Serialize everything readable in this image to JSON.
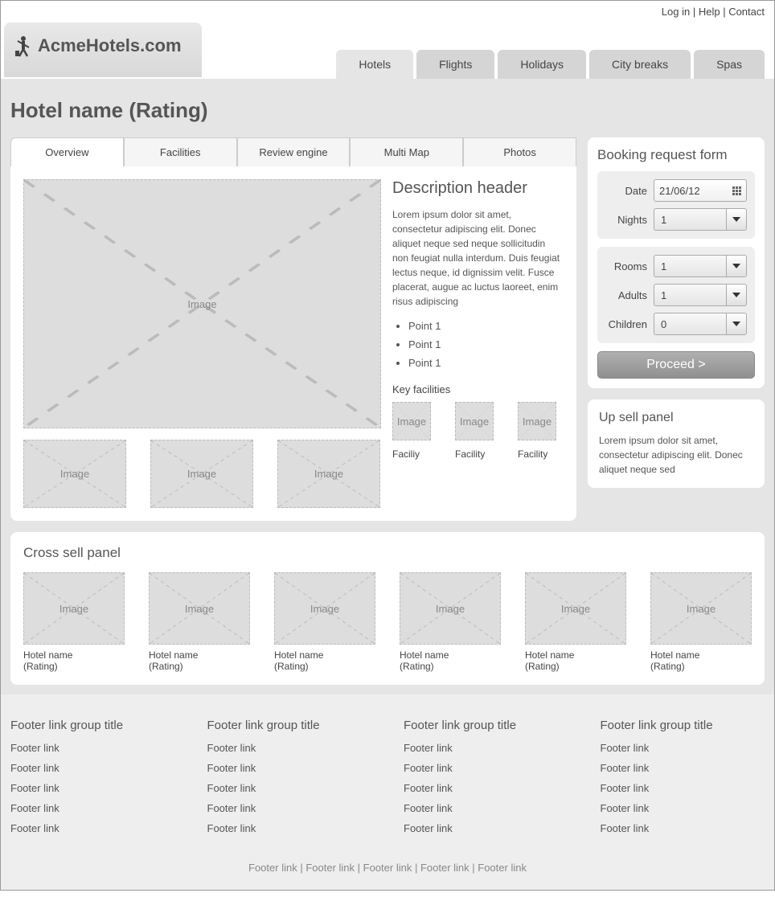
{
  "top_links": {
    "login": "Log in",
    "help": "Help",
    "contact": "Contact"
  },
  "logo": {
    "text": "AcmeHotels.com"
  },
  "main_nav": [
    {
      "label": "Hotels",
      "active": true
    },
    {
      "label": "Flights"
    },
    {
      "label": "Holidays"
    },
    {
      "label": "City breaks"
    },
    {
      "label": "Spas"
    }
  ],
  "page_title": "Hotel name (Rating)",
  "detail_tabs": [
    {
      "label": "Overview",
      "active": true
    },
    {
      "label": "Facilities"
    },
    {
      "label": "Review engine"
    },
    {
      "label": "Multi Map"
    },
    {
      "label": "Photos"
    }
  ],
  "placeholder_label": "Image",
  "description": {
    "header": "Description header",
    "text": "Lorem ipsum dolor sit amet, consectetur adipiscing elit. Donec aliquet neque sed neque sollicitudin non feugiat nulla interdum. Duis feugiat lectus neque, id dignissim velit. Fusce placerat, augue ac luctus laoreet, enim risus adipiscing",
    "points": [
      "Point 1",
      "Point 1",
      "Point 1"
    ]
  },
  "facilities": {
    "title": "Key facilities",
    "items": [
      {
        "label": "Faciliy"
      },
      {
        "label": "Facility"
      },
      {
        "label": "Facility"
      }
    ]
  },
  "booking": {
    "title": "Booking request form",
    "fields": {
      "date": {
        "label": "Date",
        "value": "21/06/12"
      },
      "nights": {
        "label": "Nights",
        "value": "1"
      },
      "rooms": {
        "label": "Rooms",
        "value": "1"
      },
      "adults": {
        "label": "Adults",
        "value": "1"
      },
      "children": {
        "label": "Children",
        "value": "0"
      }
    },
    "proceed": "Proceed >"
  },
  "upsell": {
    "title": "Up sell panel",
    "text": "Lorem ipsum dolor sit amet, consectetur adipiscing elit. Donec aliquet neque sed"
  },
  "cross": {
    "title": "Cross sell panel",
    "items": [
      {
        "name": "Hotel name",
        "rating": "(Rating)"
      },
      {
        "name": "Hotel name",
        "rating": "(Rating)"
      },
      {
        "name": "Hotel name",
        "rating": "(Rating)"
      },
      {
        "name": "Hotel name",
        "rating": "(Rating)"
      },
      {
        "name": "Hotel name",
        "rating": "(Rating)"
      },
      {
        "name": "Hotel name",
        "rating": "(Rating)"
      }
    ]
  },
  "footer": {
    "columns": [
      {
        "title": "Footer link group title",
        "links": [
          "Footer link",
          "Footer link",
          "Footer link",
          "Footer link",
          "Footer link"
        ]
      },
      {
        "title": "Footer link group title",
        "links": [
          "Footer link",
          "Footer link",
          "Footer link",
          "Footer link",
          "Footer link"
        ]
      },
      {
        "title": "Footer link group title",
        "links": [
          "Footer link",
          "Footer link",
          "Footer link",
          "Footer link",
          "Footer link"
        ]
      },
      {
        "title": "Footer link group title",
        "links": [
          "Footer link",
          "Footer link",
          "Footer link",
          "Footer link",
          "Footer link"
        ]
      }
    ],
    "bottom": [
      "Footer link",
      "Footer link",
      "Footer link",
      "Footer link",
      "Footer link"
    ]
  },
  "styling": {
    "page_bg": "#e5e5e5",
    "panel_bg": "#ffffff",
    "placeholder_bg": "#dddddd",
    "placeholder_border": "#bbbbbb",
    "text_color": "#555555",
    "nav_tab_bg": "#d5d5d5",
    "nav_tab_active_bg": "#e5e5e5",
    "form_group_bg": "#eeeeee",
    "proceed_gradient": [
      "#b0b0b0",
      "#909090"
    ],
    "border_radius": 8,
    "font_family": "Arial"
  }
}
